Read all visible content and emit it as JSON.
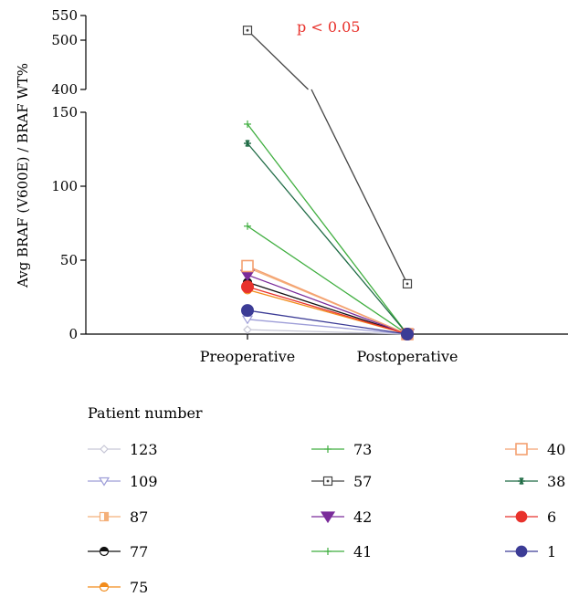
{
  "chart_data": {
    "type": "line",
    "title": "",
    "xlabel": "",
    "ylabel": "Avg BRAF (V600E) / BRAF WT%",
    "categories": [
      "Preoperative",
      "Postoperative"
    ],
    "annotation": "p < 0.05",
    "annotation_color": "#e8322c",
    "y_scale": "broken",
    "ylim_lower": [
      0,
      150
    ],
    "ylim_upper": [
      400,
      550
    ],
    "yticks_lower": [
      "0",
      "50",
      "100",
      "150"
    ],
    "yticks_upper": [
      "400",
      "500",
      "550"
    ],
    "legend_title": "Patient number",
    "legend_placement": "bottom",
    "series": [
      {
        "name": "123",
        "values": [
          3,
          0
        ],
        "color": "#c7c7d6",
        "marker": "diamond-open"
      },
      {
        "name": "109",
        "values": [
          10,
          0
        ],
        "color": "#9e9ed8",
        "marker": "triangle-down-open"
      },
      {
        "name": "87",
        "values": [
          45,
          0
        ],
        "color": "#f4b07a",
        "marker": "square-half"
      },
      {
        "name": "77",
        "values": [
          35,
          0
        ],
        "color": "#111111",
        "marker": "circle-half"
      },
      {
        "name": "75",
        "values": [
          30,
          0
        ],
        "color": "#f28c1c",
        "marker": "circle-half-orange"
      },
      {
        "name": "73",
        "values": [
          73,
          0
        ],
        "color": "#3fae3f",
        "marker": "plus"
      },
      {
        "name": "57",
        "values": [
          520,
          34
        ],
        "color": "#444444",
        "marker": "square-dot"
      },
      {
        "name": "42",
        "values": [
          40,
          0
        ],
        "color": "#7a2b9a",
        "marker": "triangle-down-filled"
      },
      {
        "name": "41",
        "values": [
          142,
          0
        ],
        "color": "#3fae3f",
        "marker": "plus"
      },
      {
        "name": "40",
        "values": [
          46,
          0
        ],
        "color": "#f4a070",
        "marker": "square-open-large"
      },
      {
        "name": "38",
        "values": [
          129,
          0
        ],
        "color": "#1f6b45",
        "marker": "asterisk"
      },
      {
        "name": "6",
        "values": [
          32,
          0
        ],
        "color": "#e8322c",
        "marker": "circle-filled"
      },
      {
        "name": "1",
        "values": [
          16,
          0
        ],
        "color": "#3c3c96",
        "marker": "circle-filled"
      }
    ]
  }
}
